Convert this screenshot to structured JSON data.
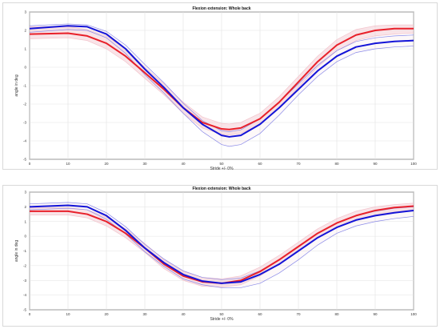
{
  "chart_data": [
    {
      "type": "line",
      "title": "Flexion extension: Whole back",
      "xlabel": "Stride +/- 0%",
      "ylabel": "angle in deg",
      "xlim": [
        0,
        100
      ],
      "ylim": [
        -5,
        3
      ],
      "xticks": [
        "0",
        "10",
        "20",
        "30",
        "40",
        "50",
        "60",
        "70",
        "80",
        "90",
        "100"
      ],
      "yticks": [
        "3",
        "2",
        "1",
        "0",
        "-1",
        "-2",
        "-3",
        "-4",
        "-5"
      ],
      "grid": true,
      "colors": {
        "series_a": "#e8202a",
        "series_b": "#1414d8",
        "band_a": "#f2c4cc",
        "band_b": "#8a8ae8"
      },
      "series": [
        {
          "x": [
            0,
            10,
            15,
            20,
            25,
            30,
            35,
            40,
            45,
            50,
            52,
            55,
            60,
            65,
            70,
            75,
            80,
            85,
            90,
            95,
            100
          ],
          "values": [
            1.8,
            1.85,
            1.7,
            1.3,
            0.6,
            -0.3,
            -1.2,
            -2.2,
            -3.0,
            -3.35,
            -3.38,
            -3.3,
            -2.8,
            -1.9,
            -0.8,
            0.3,
            1.2,
            1.75,
            2.0,
            2.1,
            2.1
          ],
          "upper": [
            2.2,
            2.2,
            2.05,
            1.7,
            1.0,
            0.0,
            -0.9,
            -1.9,
            -2.7,
            -3.05,
            -3.08,
            -3.0,
            -2.5,
            -1.6,
            -0.5,
            0.6,
            1.5,
            2.05,
            2.25,
            2.3,
            2.3
          ],
          "lower": [
            1.55,
            1.6,
            1.45,
            1.0,
            0.3,
            -0.6,
            -1.5,
            -2.5,
            -3.3,
            -3.65,
            -3.68,
            -3.6,
            -3.1,
            -2.2,
            -1.1,
            0.0,
            0.9,
            1.45,
            1.7,
            1.8,
            1.85
          ]
        },
        {
          "x": [
            0,
            10,
            15,
            20,
            25,
            30,
            35,
            40,
            45,
            50,
            52,
            55,
            60,
            65,
            70,
            75,
            80,
            85,
            90,
            95,
            100
          ],
          "values": [
            2.1,
            2.25,
            2.2,
            1.8,
            1.0,
            -0.1,
            -1.1,
            -2.2,
            -3.1,
            -3.7,
            -3.78,
            -3.7,
            -3.1,
            -2.2,
            -1.2,
            -0.2,
            0.6,
            1.1,
            1.3,
            1.4,
            1.45
          ],
          "upper": [
            2.25,
            2.35,
            2.3,
            1.95,
            1.2,
            0.15,
            -0.85,
            -1.95,
            -2.9,
            -3.45,
            -3.5,
            -3.4,
            -2.8,
            -1.9,
            -0.9,
            0.1,
            0.9,
            1.4,
            1.6,
            1.7,
            1.75
          ],
          "lower": [
            1.9,
            2.05,
            2.0,
            1.6,
            0.75,
            -0.4,
            -1.4,
            -2.5,
            -3.5,
            -4.2,
            -4.3,
            -4.2,
            -3.6,
            -2.6,
            -1.5,
            -0.5,
            0.3,
            0.8,
            1.0,
            1.1,
            1.15
          ]
        }
      ]
    },
    {
      "type": "line",
      "title": "Flexion extension: Whole back",
      "xlabel": "Stride +/- 0%",
      "ylabel": "angle in deg",
      "xlim": [
        0,
        100
      ],
      "ylim": [
        -5,
        3
      ],
      "xticks": [
        "0",
        "10",
        "20",
        "30",
        "40",
        "50",
        "60",
        "70",
        "80",
        "90",
        "100"
      ],
      "yticks": [
        "3",
        "2",
        "1",
        "0",
        "-1",
        "-2",
        "-3",
        "-4",
        "-5"
      ],
      "grid": true,
      "colors": {
        "series_a": "#e8202a",
        "series_b": "#1414d8",
        "band_a": "#f2c4cc",
        "band_b": "#8a8ae8"
      },
      "series": [
        {
          "x": [
            0,
            10,
            15,
            20,
            25,
            30,
            35,
            40,
            45,
            50,
            55,
            60,
            65,
            70,
            75,
            80,
            85,
            90,
            95,
            100
          ],
          "values": [
            1.7,
            1.7,
            1.5,
            1.0,
            0.2,
            -0.8,
            -1.9,
            -2.7,
            -3.1,
            -3.2,
            -3.0,
            -2.4,
            -1.6,
            -0.7,
            0.2,
            0.9,
            1.4,
            1.75,
            1.95,
            2.05
          ],
          "upper": [
            1.95,
            1.95,
            1.8,
            1.3,
            0.5,
            -0.5,
            -1.6,
            -2.4,
            -2.8,
            -2.9,
            -2.7,
            -2.1,
            -1.3,
            -0.4,
            0.5,
            1.2,
            1.7,
            2.0,
            2.15,
            2.25
          ],
          "lower": [
            1.45,
            1.45,
            1.25,
            0.7,
            -0.1,
            -1.1,
            -2.2,
            -3.0,
            -3.4,
            -3.45,
            -3.3,
            -2.7,
            -1.9,
            -1.0,
            -0.1,
            0.6,
            1.1,
            1.45,
            1.65,
            1.8
          ]
        },
        {
          "x": [
            0,
            10,
            15,
            20,
            25,
            30,
            35,
            40,
            45,
            50,
            55,
            60,
            65,
            70,
            75,
            80,
            85,
            90,
            95,
            100
          ],
          "values": [
            2.0,
            2.1,
            2.0,
            1.4,
            0.4,
            -0.8,
            -1.8,
            -2.6,
            -3.05,
            -3.2,
            -3.1,
            -2.6,
            -1.9,
            -1.0,
            -0.1,
            0.6,
            1.1,
            1.4,
            1.6,
            1.75
          ],
          "upper": [
            2.2,
            2.3,
            2.2,
            1.6,
            0.65,
            -0.55,
            -1.55,
            -2.35,
            -2.8,
            -2.95,
            -2.85,
            -2.35,
            -1.6,
            -0.7,
            0.2,
            0.9,
            1.4,
            1.7,
            1.9,
            2.0
          ],
          "lower": [
            1.8,
            1.9,
            1.8,
            1.15,
            0.15,
            -1.05,
            -2.05,
            -2.9,
            -3.3,
            -3.5,
            -3.5,
            -3.2,
            -2.5,
            -1.6,
            -0.6,
            0.2,
            0.7,
            1.0,
            1.2,
            1.35
          ]
        }
      ]
    }
  ]
}
